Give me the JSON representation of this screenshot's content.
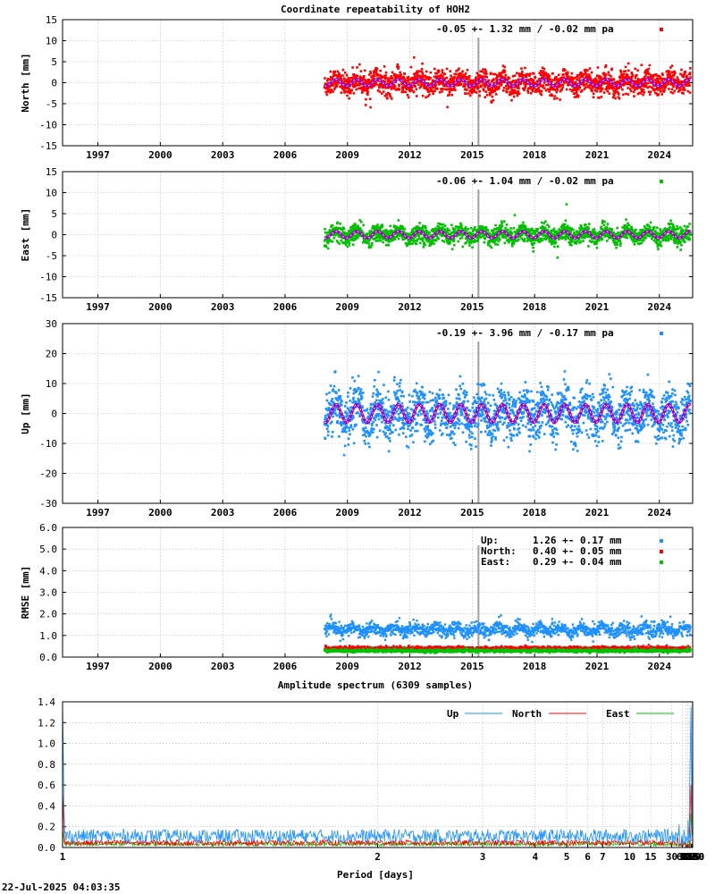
{
  "title": "Coordinate repeatability of HOH2",
  "footer_timestamp": "22-Jul-2025 04:03:35",
  "colors": {
    "north": "#ff0000",
    "east": "#00c000",
    "up": "#1e90ff",
    "model": "#a000c0",
    "event_line": "#a0a0a0"
  },
  "chart_data": [
    {
      "type": "scatter",
      "ylabel": "North [mm]",
      "ylim": [
        -15,
        15
      ],
      "yticks": [
        -15,
        -10,
        -5,
        0,
        5,
        10,
        15
      ],
      "xlim": [
        1995.3,
        2025.6
      ],
      "xticks": [
        1997,
        2000,
        2003,
        2006,
        2009,
        2012,
        2015,
        2018,
        2021,
        2024
      ],
      "grid": true,
      "annotation": "-0.05 +- 1.32 mm / -0.02 mm pa",
      "series_color": "north",
      "data_start": 2007.9,
      "data_end": 2025.5,
      "scatter_std": 1.32,
      "seasonal_amplitude": 0.8,
      "event_line": 2015.3
    },
    {
      "type": "scatter",
      "ylabel": "East [mm]",
      "ylim": [
        -15,
        15
      ],
      "yticks": [
        -15,
        -10,
        -5,
        0,
        5,
        10,
        15
      ],
      "xlim": [
        1995.3,
        2025.6
      ],
      "xticks": [
        1997,
        2000,
        2003,
        2006,
        2009,
        2012,
        2015,
        2018,
        2021,
        2024
      ],
      "grid": true,
      "annotation": "-0.06 +- 1.04 mm / -0.02 mm pa",
      "series_color": "east",
      "data_start": 2007.9,
      "data_end": 2025.5,
      "scatter_std": 1.04,
      "seasonal_amplitude": 0.8,
      "event_line": 2015.3
    },
    {
      "type": "scatter",
      "ylabel": "Up [mm]",
      "ylim": [
        -30,
        30
      ],
      "yticks": [
        -30,
        -20,
        -10,
        0,
        10,
        20,
        30
      ],
      "xlim": [
        1995.3,
        2025.6
      ],
      "xticks": [
        1997,
        2000,
        2003,
        2006,
        2009,
        2012,
        2015,
        2018,
        2021,
        2024
      ],
      "grid": true,
      "annotation": "-0.19 +- 3.96 mm / -0.17 mm pa",
      "series_color": "up",
      "data_start": 2007.9,
      "data_end": 2025.5,
      "scatter_std": 3.96,
      "seasonal_amplitude": 3.0,
      "event_line": 2015.3
    },
    {
      "type": "scatter",
      "ylabel": "RMSE [mm]",
      "ylim": [
        0,
        6
      ],
      "yticks": [
        "0.0",
        "1.0",
        "2.0",
        "3.0",
        "4.0",
        "5.0",
        "6.0"
      ],
      "xlim": [
        1995.3,
        2025.6
      ],
      "xticks": [
        1997,
        2000,
        2003,
        2006,
        2009,
        2012,
        2015,
        2018,
        2021,
        2024
      ],
      "grid": true,
      "event_line": 2015.3,
      "data_start": 2007.9,
      "data_end": 2025.5,
      "legend": [
        {
          "name": "Up:",
          "value": "1.26 +- 0.17 mm",
          "color": "up",
          "mean": 1.26,
          "std": 0.17
        },
        {
          "name": "North:",
          "value": "0.40 +- 0.05 mm",
          "color": "north",
          "mean": 0.4,
          "std": 0.05
        },
        {
          "name": "East:",
          "value": "0.29 +- 0.04 mm",
          "color": "east",
          "mean": 0.29,
          "std": 0.04
        }
      ]
    },
    {
      "type": "line",
      "title": "Amplitude spectrum (6309 samples)",
      "xlabel": "Period [days]",
      "xscale": "reciprocal",
      "xlim": [
        1,
        8760
      ],
      "xticks": [
        1,
        2,
        3,
        4,
        5,
        6,
        7,
        10,
        15,
        30,
        61,
        91,
        122,
        183,
        365,
        730,
        2190,
        4380,
        8760
      ],
      "ylim": [
        0,
        1.4
      ],
      "yticks": [
        "0.0",
        "0.2",
        "0.4",
        "0.6",
        "0.8",
        "1.0",
        "1.2",
        "1.4"
      ],
      "grid": true,
      "legend": [
        {
          "name": "Up",
          "color": "up"
        },
        {
          "name": "North",
          "color": "north"
        },
        {
          "name": "East",
          "color": "east"
        }
      ],
      "peaks": {
        "up": [
          [
            1,
            1.4
          ],
          [
            365,
            1.35
          ],
          [
            180,
            0.28
          ],
          [
            730,
            0.48
          ],
          [
            1100,
            0.14
          ],
          [
            2190,
            0.88
          ],
          [
            3100,
            1.05
          ],
          [
            6300,
            0.81
          ]
        ],
        "north": [
          [
            1,
            0.55
          ],
          [
            365,
            0.6
          ],
          [
            180,
            0.14
          ],
          [
            730,
            0.14
          ],
          [
            2190,
            0.26
          ],
          [
            3100,
            0.01
          ],
          [
            6300,
            0.1
          ]
        ],
        "east": [
          [
            1,
            0.18
          ],
          [
            365,
            0.33
          ],
          [
            180,
            0.08
          ],
          [
            730,
            0.12
          ],
          [
            2190,
            0.13
          ],
          [
            3100,
            0.21
          ],
          [
            6300,
            0.2
          ]
        ]
      }
    }
  ]
}
